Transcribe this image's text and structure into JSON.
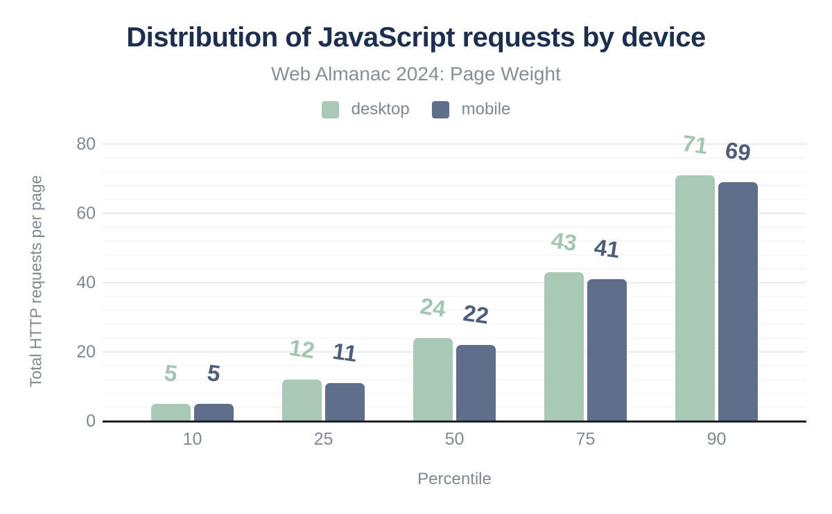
{
  "title": "Distribution of JavaScript requests by device",
  "subtitle": "Web Almanac 2024: Page Weight",
  "colors": {
    "title_text": "#1d2e4e",
    "muted_text": "#7f8893",
    "desktop_bar": "#a9c9b6",
    "mobile_bar": "#5f6e8b",
    "desktop_label": "#a2c6af",
    "mobile_label": "#4d5e7b",
    "axis_line": "#202124",
    "gridline_major": "#ebebed",
    "gridline_minor": "#f6f6f7",
    "background": "#ffffff"
  },
  "legend": {
    "items": [
      {
        "label": "desktop",
        "color": "#a9c9b6"
      },
      {
        "label": "mobile",
        "color": "#5f6e8b"
      }
    ]
  },
  "chart_data": {
    "type": "bar",
    "title": "Distribution of JavaScript requests by device",
    "subtitle": "Web Almanac 2024: Page Weight",
    "categories": [
      "10",
      "25",
      "50",
      "75",
      "90"
    ],
    "series": [
      {
        "name": "desktop",
        "color": "#a9c9b6",
        "label_color": "#a2c6af",
        "values": [
          5,
          12,
          24,
          43,
          71
        ]
      },
      {
        "name": "mobile",
        "color": "#5f6e8b",
        "label_color": "#4d5e7b",
        "values": [
          5,
          11,
          22,
          41,
          69
        ]
      }
    ],
    "xlabel": "Percentile",
    "ylabel": "Total HTTP requests per page",
    "ylim": [
      0,
      80
    ],
    "yticks": [
      0,
      20,
      40,
      60,
      80
    ],
    "minor_grid_step": 4,
    "grid": "on",
    "legend_position": "top",
    "data_labels": "on"
  }
}
